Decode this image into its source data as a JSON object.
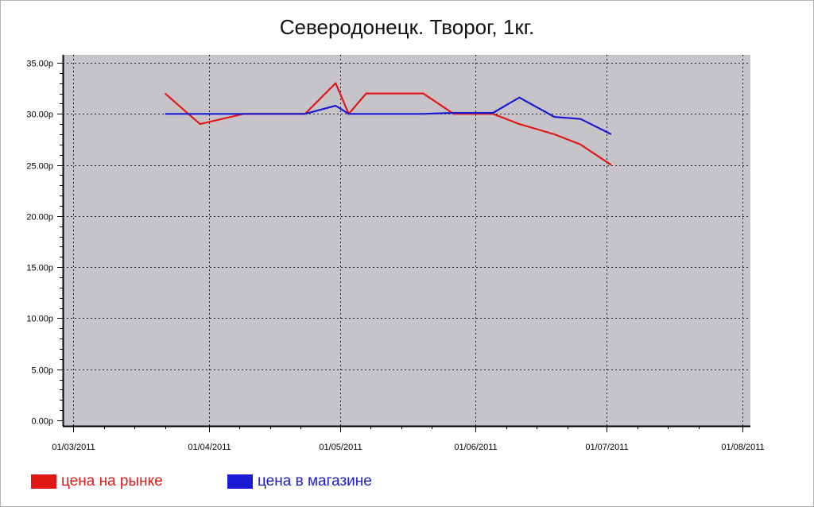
{
  "chart_data": {
    "type": "line",
    "title": "Северодонецк. Творог, 1кг.",
    "xlabel": "",
    "ylabel": "",
    "x_axis": {
      "type": "date",
      "range": [
        "2011-03-01",
        "2011-08-01"
      ],
      "tick_labels": [
        "01/03/2011",
        "01/04/2011",
        "01/05/2011",
        "01/06/2011",
        "01/07/2011",
        "01/08/2011"
      ],
      "ticks": [
        "2011-03-01",
        "2011-04-01",
        "2011-05-01",
        "2011-06-01",
        "2011-07-01",
        "2011-08-01"
      ]
    },
    "y_axis": {
      "range": [
        0,
        35
      ],
      "ticks": [
        0,
        5,
        10,
        15,
        20,
        25,
        30,
        35
      ],
      "tick_labels": [
        "0.00р",
        "5.00р",
        "10.00р",
        "15.00р",
        "20.00р",
        "25.00р",
        "30.00р",
        "35.00р"
      ]
    },
    "grid": true,
    "background": "#c6c4c8",
    "legend_position": "bottom-left",
    "series": [
      {
        "name": "цена на рынке",
        "color": "#e01818",
        "points": [
          [
            "2011-03-22",
            32.0
          ],
          [
            "2011-03-30",
            29.0
          ],
          [
            "2011-04-09",
            30.0
          ],
          [
            "2011-04-23",
            30.0
          ],
          [
            "2011-04-30",
            33.0
          ],
          [
            "2011-05-03",
            30.0
          ],
          [
            "2011-05-07",
            32.0
          ],
          [
            "2011-05-20",
            32.0
          ],
          [
            "2011-05-27",
            30.0
          ],
          [
            "2011-06-05",
            30.0
          ],
          [
            "2011-06-11",
            29.0
          ],
          [
            "2011-06-19",
            28.0
          ],
          [
            "2011-06-25",
            27.0
          ],
          [
            "2011-07-02",
            25.0
          ]
        ]
      },
      {
        "name": "цена в магазине",
        "color": "#1a1ad2",
        "points": [
          [
            "2011-03-22",
            30.0
          ],
          [
            "2011-04-09",
            30.0
          ],
          [
            "2011-04-23",
            30.0
          ],
          [
            "2011-04-30",
            30.8
          ],
          [
            "2011-05-03",
            30.0
          ],
          [
            "2011-05-20",
            30.0
          ],
          [
            "2011-05-27",
            30.1
          ],
          [
            "2011-06-05",
            30.1
          ],
          [
            "2011-06-11",
            31.6
          ],
          [
            "2011-06-19",
            29.7
          ],
          [
            "2011-06-25",
            29.5
          ],
          [
            "2011-07-02",
            28.0
          ]
        ]
      }
    ]
  }
}
